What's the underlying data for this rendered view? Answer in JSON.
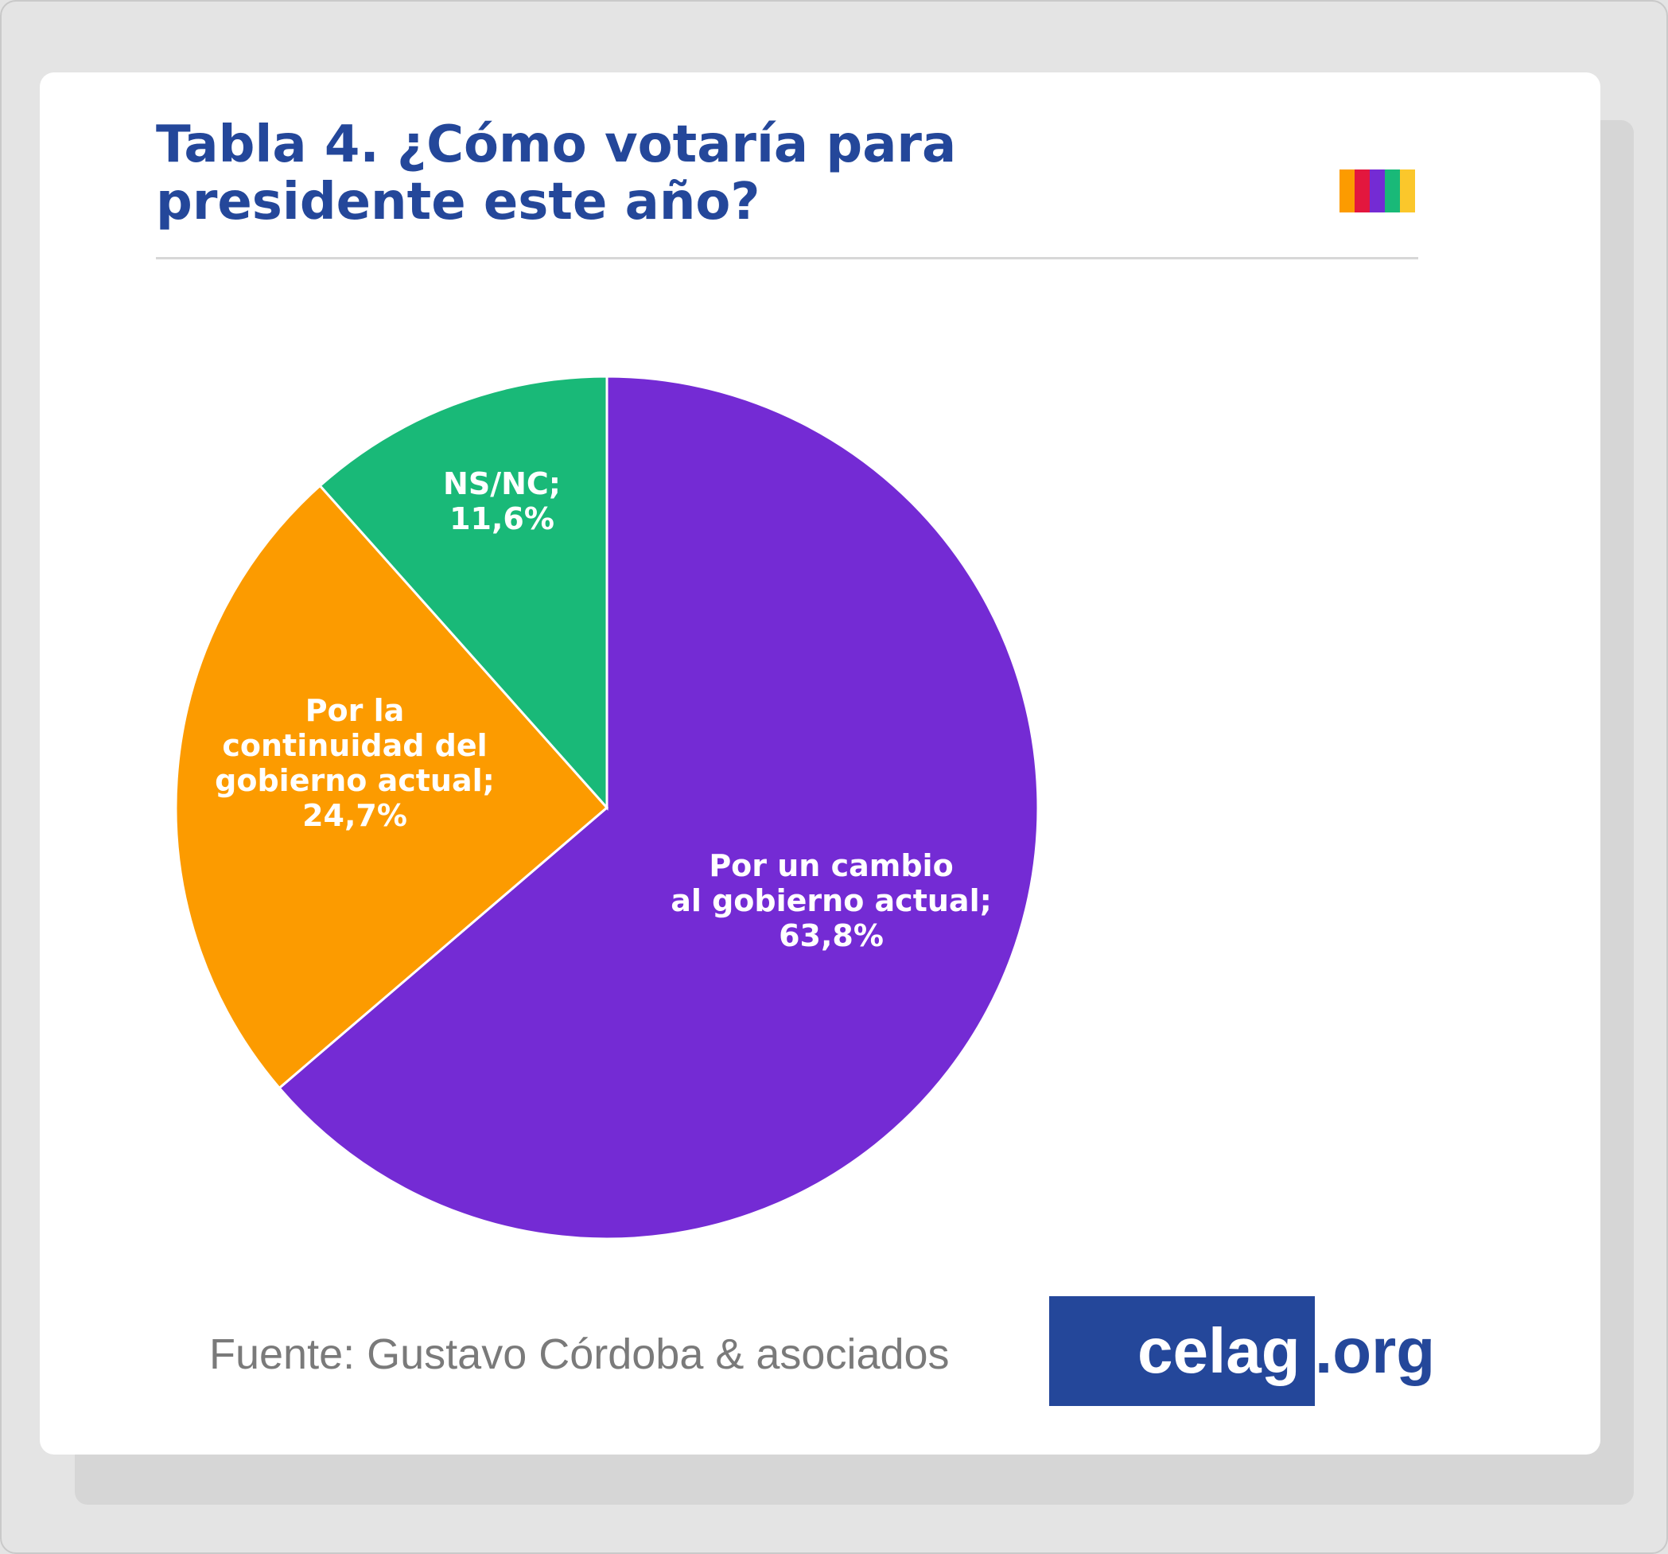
{
  "chart_data": {
    "type": "pie",
    "title": "Tabla 4. ¿Cómo votaría para presidente este año?",
    "title_lines": [
      "Tabla 4. ¿Cómo votaría para",
      "presidente este año?"
    ],
    "slices": [
      {
        "label": "Por un cambio al gobierno actual",
        "value": 63.8,
        "label_lines": [
          "Por un cambio",
          "al gobierno actual;",
          "63,8%"
        ],
        "color": "#742bd4"
      },
      {
        "label": "Por la continuidad del gobierno actual",
        "value": 24.7,
        "label_lines": [
          "Por la",
          "continuidad del",
          "gobierno actual;",
          "24,7%"
        ],
        "color": "#fc9b00"
      },
      {
        "label": "NS/NC",
        "value": 11.6,
        "label_lines": [
          "NS/NC;",
          "11,6%"
        ],
        "color": "#19b978"
      }
    ],
    "start": "12 o'clock, clockwise",
    "legend": "none (labels inside slices)"
  },
  "header": {
    "accent_colors": [
      "#fc9b00",
      "#e3173e",
      "#742bd4",
      "#19b978",
      "#fbc72b"
    ]
  },
  "footer": {
    "source": "Fuente: Gustavo Córdoba & asociados",
    "logo_main": "celag",
    "logo_suffix": ".org",
    "logo_color": "#24479a"
  }
}
